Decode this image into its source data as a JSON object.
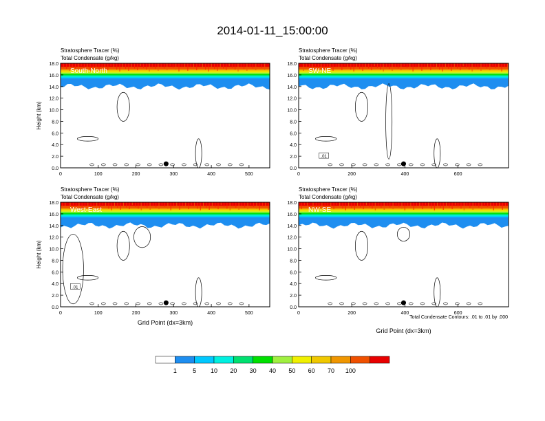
{
  "title": "2014-01-11_15:00:00",
  "panel_titles": {
    "line1": "Stratosphere Tracer   (%)",
    "line2": "Total Condensate   (g/kg)"
  },
  "footnote": "Total Condensate Contours: .01 to .01 by .000",
  "colors": [
    "#ffffff",
    "#1e8ef0",
    "#00c8ff",
    "#00f0e0",
    "#00e070",
    "#00e000",
    "#a0f040",
    "#f0f000",
    "#f0c800",
    "#f09600",
    "#f05000",
    "#e80000"
  ],
  "chart_data": [
    {
      "type": "area",
      "label": "South-North",
      "xlabel": "",
      "ylabel": "Height (km)",
      "xlim": [
        0,
        555
      ],
      "ylim": [
        0,
        18
      ],
      "xticks": [
        "0",
        "100",
        "200",
        "300",
        "400",
        "500"
      ],
      "yticks": [
        "0.0",
        "2.0",
        "4.0",
        "6.0",
        "8.0",
        "10.0",
        "12.0",
        "14.0",
        "16.0",
        "18.0"
      ],
      "marker": {
        "x": 280,
        "y": 0.7
      },
      "contour_label": "",
      "contour_level": ".01"
    },
    {
      "type": "area",
      "label": "SW-NE",
      "xlabel": "",
      "ylabel": "",
      "xlim": [
        0,
        790
      ],
      "ylim": [
        0,
        18
      ],
      "xticks": [
        "0",
        "200",
        "400",
        "600"
      ],
      "yticks": [
        "0.0",
        "2.0",
        "4.0",
        "6.0",
        "8.0",
        "10.0",
        "12.0",
        "14.0",
        "16.0",
        "18.0"
      ],
      "marker": {
        "x": 395,
        "y": 0.7
      },
      "contour_label": ".01",
      "contour_level": ".01"
    },
    {
      "type": "area",
      "label": "West-East",
      "xlabel": "Grid Point (dx=3km)",
      "ylabel": "Height (km)",
      "xlim": [
        0,
        555
      ],
      "ylim": [
        0,
        18
      ],
      "xticks": [
        "0",
        "100",
        "200",
        "300",
        "400",
        "500"
      ],
      "yticks": [
        "0.0",
        "2.0",
        "4.0",
        "6.0",
        "8.0",
        "10.0",
        "12.0",
        "14.0",
        "16.0",
        "18.0"
      ],
      "marker": {
        "x": 280,
        "y": 0.7
      },
      "contour_label": ".01",
      "contour_level": ".01"
    },
    {
      "type": "area",
      "label": "NW-SE",
      "xlabel": "Grid Point (dx=3km)",
      "ylabel": "",
      "xlim": [
        0,
        790
      ],
      "ylim": [
        0,
        18
      ],
      "xticks": [
        "0",
        "200",
        "400",
        "600"
      ],
      "yticks": [
        "0.0",
        "2.0",
        "4.0",
        "6.0",
        "8.0",
        "10.0",
        "12.0",
        "14.0",
        "16.0",
        "18.0"
      ],
      "marker": {
        "x": 395,
        "y": 0.7
      },
      "contour_label": "",
      "contour_level": ".01"
    }
  ],
  "colorbar": {
    "labels": [
      "1",
      "5",
      "10",
      "20",
      "30",
      "40",
      "50",
      "60",
      "70",
      "100"
    ],
    "colors": [
      "#ffffff",
      "#1e8ef0",
      "#00c8ff",
      "#00f0e0",
      "#00e070",
      "#00e000",
      "#a0f040",
      "#f0f000",
      "#f0c800",
      "#f09600",
      "#f05000",
      "#e80000"
    ]
  }
}
